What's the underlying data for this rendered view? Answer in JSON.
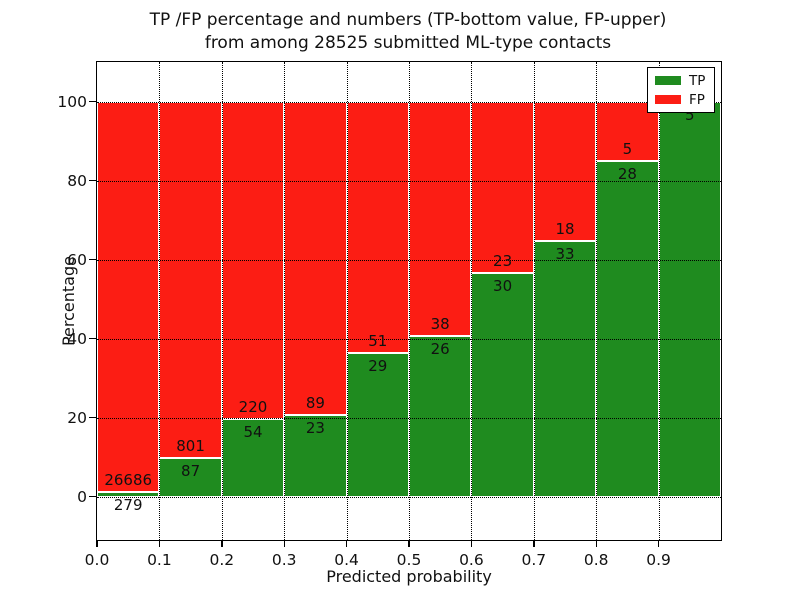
{
  "figure": {
    "title_line1": "TP /FP percentage and numbers (TP-bottom value, FP-upper)",
    "title_line2": "from among 28525 submitted ML-type contacts",
    "background_color": "#ffffff"
  },
  "chart_data": {
    "type": "bar",
    "stacked": true,
    "normalized": "each bar scaled to 100%, labels show raw counts",
    "title": "TP /FP percentage and numbers (TP-bottom value, FP-upper) from among 28525 submitted ML-type contacts",
    "total_contacts": 28525,
    "xlabel": "Predicted probability",
    "ylabel": "Percentage",
    "xlim": [
      0.0,
      1.0
    ],
    "ylim": [
      -11,
      110
    ],
    "bin_width": 0.1,
    "x_ticks": [
      0.0,
      0.1,
      0.2,
      0.3,
      0.4,
      0.5,
      0.6,
      0.7,
      0.8,
      0.9
    ],
    "x_tick_labels": [
      "0.0",
      "0.1",
      "0.2",
      "0.3",
      "0.4",
      "0.5",
      "0.6",
      "0.7",
      "0.8",
      "0.9"
    ],
    "y_ticks": [
      0,
      20,
      40,
      60,
      80,
      100
    ],
    "y_tick_labels": [
      "0",
      "20",
      "40",
      "60",
      "80",
      "100"
    ],
    "grid": "dotted, horizontal at y ticks and vertical at x ticks, drawn over bars",
    "bar_edge_color": "#ffffff",
    "legend_position": "upper right",
    "categories": [
      "0.0-0.1",
      "0.1-0.2",
      "0.2-0.3",
      "0.3-0.4",
      "0.4-0.5",
      "0.5-0.6",
      "0.6-0.7",
      "0.7-0.8",
      "0.8-0.9",
      "0.9-1.0"
    ],
    "series": [
      {
        "name": "TP",
        "color": "#1f8b1f",
        "values": [
          279,
          87,
          54,
          23,
          29,
          26,
          30,
          33,
          28,
          5
        ]
      },
      {
        "name": "FP",
        "color": "#fc1d14",
        "values": [
          26686,
          801,
          220,
          89,
          51,
          38,
          23,
          18,
          5,
          0
        ]
      }
    ]
  },
  "legend": {
    "items": [
      {
        "label": "TP",
        "color": "#1f8b1f"
      },
      {
        "label": "FP",
        "color": "#fc1d14"
      }
    ]
  }
}
